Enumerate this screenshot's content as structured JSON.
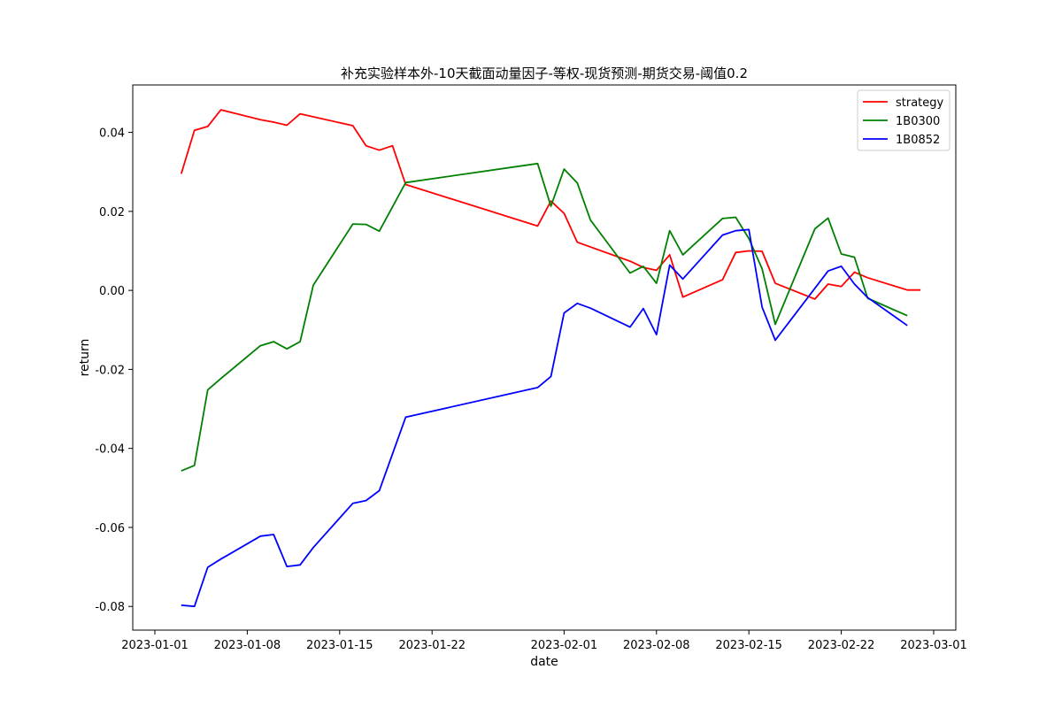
{
  "chart_data": {
    "type": "line",
    "title": "补充实验样本外-10天截面动量因子-等权-现货预测-期货交易-阈值0.2",
    "xlabel": "date",
    "ylabel": "return",
    "xlim": [
      "2023-01-01",
      "2023-03-01"
    ],
    "ylim": [
      -0.086,
      0.052
    ],
    "x_ticks": [
      "2023-01-01",
      "2023-01-08",
      "2023-01-15",
      "2023-01-22",
      "2023-02-01",
      "2023-02-08",
      "2023-02-15",
      "2023-02-22",
      "2023-03-01"
    ],
    "y_ticks": [
      "-0.08",
      "-0.06",
      "-0.04",
      "-0.02",
      "0.00",
      "0.02",
      "0.04"
    ],
    "legend_position": "top-right",
    "series": [
      {
        "name": "strategy",
        "color": "#ff0000",
        "x": [
          "2023-01-03",
          "2023-01-04",
          "2023-01-05",
          "2023-01-06",
          "2023-01-09",
          "2023-01-10",
          "2023-01-11",
          "2023-01-12",
          "2023-01-16",
          "2023-01-17",
          "2023-01-18",
          "2023-01-19",
          "2023-01-20",
          "2023-01-30",
          "2023-01-31",
          "2023-02-01",
          "2023-02-02",
          "2023-02-06",
          "2023-02-07",
          "2023-02-08",
          "2023-02-09",
          "2023-02-10",
          "2023-02-13",
          "2023-02-14",
          "2023-02-15",
          "2023-02-16",
          "2023-02-17",
          "2023-02-20",
          "2023-02-21",
          "2023-02-22",
          "2023-02-23",
          "2023-02-24",
          "2023-02-27",
          "2023-02-28"
        ],
        "values": [
          0.0295,
          0.0405,
          0.0415,
          0.0457,
          0.0432,
          0.0426,
          0.0418,
          0.0447,
          0.0417,
          0.0366,
          0.0355,
          0.0366,
          0.0268,
          0.0163,
          0.0226,
          0.0195,
          0.0122,
          0.0074,
          0.0058,
          0.0051,
          0.009,
          -0.0017,
          0.0027,
          0.0096,
          0.01,
          0.0099,
          0.0018,
          -0.0022,
          0.0016,
          0.001,
          0.0046,
          0.0032,
          0.0001,
          0.0001
        ]
      },
      {
        "name": "1B0300",
        "color": "#008000",
        "x": [
          "2023-01-03",
          "2023-01-04",
          "2023-01-05",
          "2023-01-06",
          "2023-01-09",
          "2023-01-10",
          "2023-01-11",
          "2023-01-12",
          "2023-01-13",
          "2023-01-16",
          "2023-01-17",
          "2023-01-18",
          "2023-01-20",
          "2023-01-30",
          "2023-01-31",
          "2023-02-01",
          "2023-02-02",
          "2023-02-03",
          "2023-02-06",
          "2023-02-07",
          "2023-02-08",
          "2023-02-09",
          "2023-02-10",
          "2023-02-13",
          "2023-02-14",
          "2023-02-15",
          "2023-02-16",
          "2023-02-17",
          "2023-02-20",
          "2023-02-21",
          "2023-02-22",
          "2023-02-23",
          "2023-02-24",
          "2023-02-27"
        ],
        "values": [
          -0.0457,
          -0.0443,
          -0.0252,
          -0.0223,
          -0.014,
          -0.013,
          -0.0148,
          -0.013,
          0.0013,
          0.0168,
          0.0167,
          0.015,
          0.0273,
          0.0321,
          0.0213,
          0.0307,
          0.0272,
          0.0178,
          0.0044,
          0.0061,
          0.0018,
          0.0151,
          0.009,
          0.0182,
          0.0185,
          0.0131,
          0.0055,
          -0.0086,
          0.0156,
          0.0183,
          0.0092,
          0.0084,
          -0.002,
          -0.0064
        ]
      },
      {
        "name": "1B0852",
        "color": "#0000ff",
        "x": [
          "2023-01-03",
          "2023-01-04",
          "2023-01-05",
          "2023-01-06",
          "2023-01-09",
          "2023-01-10",
          "2023-01-11",
          "2023-01-12",
          "2023-01-13",
          "2023-01-16",
          "2023-01-17",
          "2023-01-18",
          "2023-01-20",
          "2023-01-30",
          "2023-01-31",
          "2023-02-01",
          "2023-02-02",
          "2023-02-03",
          "2023-02-06",
          "2023-02-07",
          "2023-02-08",
          "2023-02-09",
          "2023-02-10",
          "2023-02-13",
          "2023-02-14",
          "2023-02-15",
          "2023-02-16",
          "2023-02-17",
          "2023-02-21",
          "2023-02-22",
          "2023-02-23",
          "2023-02-24",
          "2023-02-27"
        ],
        "values": [
          -0.0797,
          -0.08,
          -0.0701,
          -0.068,
          -0.0622,
          -0.0618,
          -0.0699,
          -0.0695,
          -0.0651,
          -0.0539,
          -0.0532,
          -0.0507,
          -0.0321,
          -0.0246,
          -0.0218,
          -0.0057,
          -0.0033,
          -0.0045,
          -0.0093,
          -0.0046,
          -0.0112,
          0.0064,
          0.0029,
          0.014,
          0.0151,
          0.0154,
          -0.0042,
          -0.0126,
          0.0049,
          0.0061,
          0.0016,
          -0.0018,
          -0.0089
        ]
      }
    ]
  }
}
